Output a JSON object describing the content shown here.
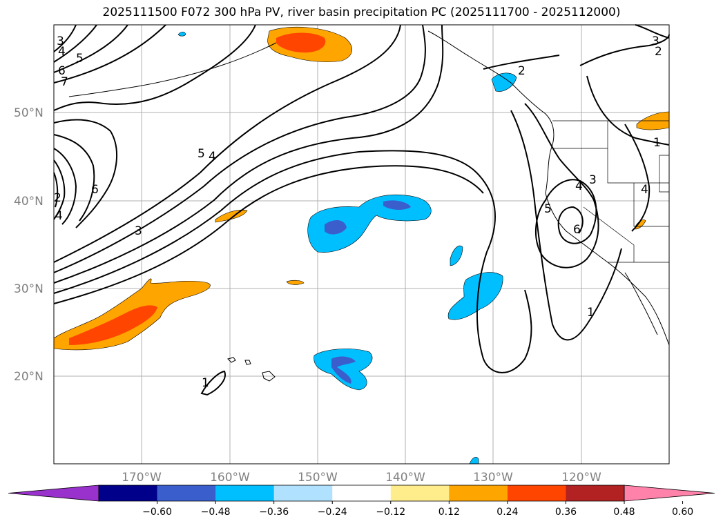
{
  "title": "2025111500 F072 300 hPa PV, river basin precipitation PC (2025111700 - 2025112000)",
  "lat_labels": [
    "50°N",
    "40°N",
    "30°N",
    "20°N"
  ],
  "lon_labels": [
    "170°W",
    "160°W",
    "150°W",
    "140°W",
    "130°W",
    "120°W"
  ],
  "colorbar": {
    "tick_labels": [
      "−0.60",
      "−0.48",
      "−0.36",
      "−0.24",
      "−0.12",
      "0.12",
      "0.24",
      "0.36",
      "0.48",
      "0.60"
    ],
    "colors": [
      "#9932CC",
      "#00008B",
      "#3A5FCD",
      "#00BFFF",
      "#B0E2FF",
      "#FFFFFF",
      "#FFEC8B",
      "#FFA500",
      "#FF4500",
      "#B22222",
      "#FF82AB"
    ]
  },
  "contour_labels": [
    "3",
    "4",
    "5",
    "6",
    "7",
    "3",
    "2",
    "2",
    "1",
    "5",
    "4",
    "3",
    "6",
    "4",
    "2",
    "3",
    "4",
    "5",
    "6",
    "1",
    "1",
    "4"
  ],
  "colors": {
    "positive_mid": "#FFA500",
    "positive_high": "#FF4500",
    "negative_mid": "#00BFFF",
    "negative_high": "#3A5FCD"
  }
}
